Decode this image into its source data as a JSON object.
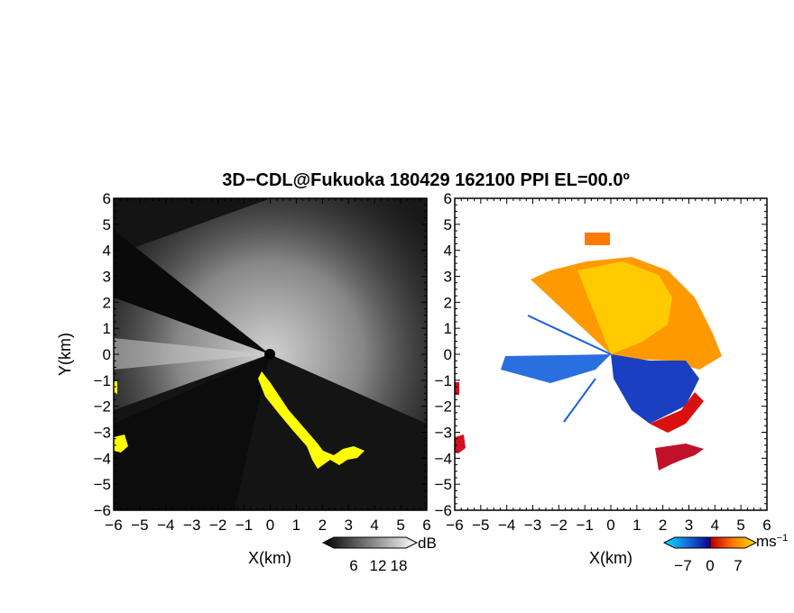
{
  "chart_data": {
    "title": "3D−CDL@Fukuoka 180429 162100 PPI EL=00.0º",
    "panels": [
      {
        "name": "left",
        "type": "heatmap",
        "xlabel": "X(km)",
        "ylabel": "Y(km)",
        "xlim": [
          -6,
          6
        ],
        "ylim": [
          -6,
          6
        ],
        "xticks": [
          -6,
          -5,
          -4,
          -3,
          -2,
          -1,
          0,
          1,
          2,
          3,
          4,
          5,
          6
        ],
        "yticks": [
          -6,
          -5,
          -4,
          -3,
          -2,
          -1,
          0,
          1,
          2,
          3,
          4,
          5,
          6
        ],
        "xtick_labels": [
          "−6",
          "−5",
          "−4",
          "−3",
          "−2",
          "−1",
          "0",
          "1",
          "2",
          "3",
          "4",
          "5",
          "6"
        ],
        "ytick_labels": [
          "−6",
          "−5",
          "−4",
          "−3",
          "−2",
          "−1",
          "0",
          "1",
          "2",
          "3",
          "4",
          "5",
          "6"
        ],
        "colorbar": {
          "ticks": [
            "6",
            "12",
            "18"
          ],
          "unit": "dB"
        }
      },
      {
        "name": "right",
        "type": "heatmap",
        "xlabel": "X(km)",
        "xlim": [
          -6,
          6
        ],
        "ylim": [
          -6,
          6
        ],
        "xticks": [
          -6,
          -5,
          -4,
          -3,
          -2,
          -1,
          0,
          1,
          2,
          3,
          4,
          5,
          6
        ],
        "yticks": [
          -6,
          -5,
          -4,
          -3,
          -2,
          -1,
          0,
          1,
          2,
          3,
          4,
          5,
          6
        ],
        "xtick_labels": [
          "−6",
          "−5",
          "−4",
          "−3",
          "−2",
          "−1",
          "0",
          "1",
          "2",
          "3",
          "4",
          "5",
          "6"
        ],
        "ytick_labels": [
          "−6",
          "−5",
          "−4",
          "−3",
          "−2",
          "−1",
          "0",
          "1",
          "2",
          "3",
          "4",
          "5",
          "6"
        ],
        "colorbar": {
          "ticks": [
            "−7",
            "0",
            "7"
          ],
          "unit": "ms",
          "unit_exp": "−1"
        }
      }
    ]
  }
}
